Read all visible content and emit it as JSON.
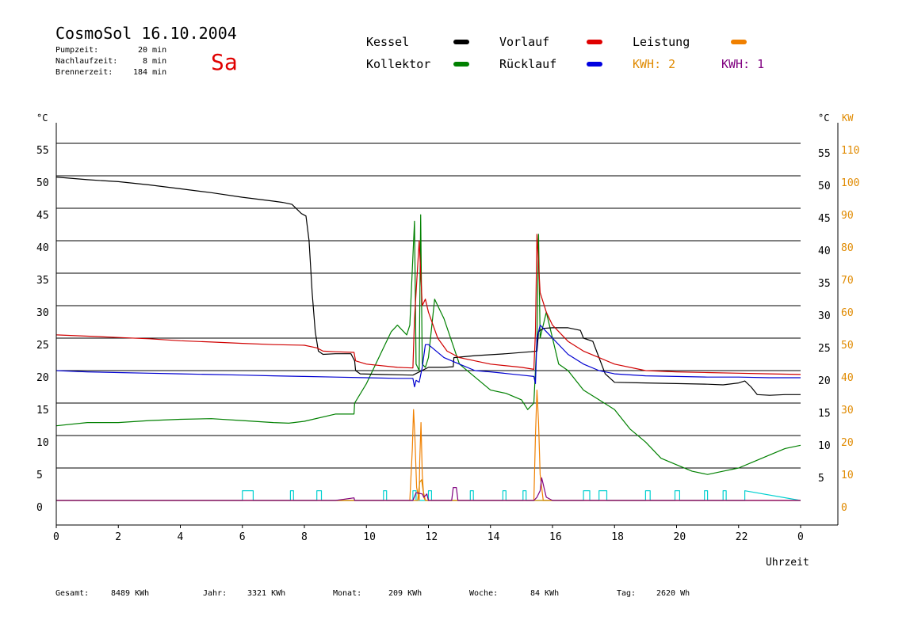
{
  "header": {
    "title": "CosmoSol 16.10.2004",
    "day": "Sa",
    "pumpzeit_label": "Pumpzeit:",
    "pumpzeit_value": "20 min",
    "nachlaufzeit_label": "Nachlaufzeit:",
    "nachlaufzeit_value": "8 min",
    "brennerzeit_label": "Brennerzeit:",
    "brennerzeit_value": "184 min"
  },
  "legend": {
    "kessel": "Kessel",
    "kollektor": "Kollektor",
    "vorlauf": "Vorlauf",
    "ruecklauf": "Rücklauf",
    "leistung": "Leistung",
    "kwh2": "KWH: 2",
    "kwh1": "KWH: 1"
  },
  "footer": {
    "gesamt_label": "Gesamt:",
    "gesamt_value": "8489 KWh",
    "jahr_label": "Jahr:",
    "jahr_value": "3321 KWh",
    "monat_label": "Monat:",
    "monat_value": "209 KWh",
    "woche_label": "Woche:",
    "woche_value": "84 KWh",
    "tag_label": "Tag:",
    "tag_value": "2620 Wh"
  },
  "chart_data": {
    "type": "line",
    "xlabel": "Uhrzeit",
    "ylabel_left": "°C",
    "ylabel_right_temp": "°C",
    "ylabel_right_power": "KW",
    "xlim": [
      0,
      24
    ],
    "ylim": [
      0,
      55
    ],
    "grid": true,
    "x_ticks": [
      "0",
      "2",
      "4",
      "6",
      "8",
      "10",
      "12",
      "14",
      "16",
      "18",
      "20",
      "22",
      "0"
    ],
    "y_ticks": [
      0,
      5,
      10,
      15,
      20,
      25,
      30,
      35,
      40,
      45,
      50,
      55
    ],
    "y_ticks_right_temp": [
      5,
      10,
      15,
      20,
      25,
      30,
      35,
      40,
      45,
      50,
      55
    ],
    "y_ticks_right_power": [
      0,
      10,
      20,
      30,
      40,
      50,
      60,
      70,
      80,
      90,
      100,
      110
    ],
    "colors": {
      "kessel": "#000000",
      "kollektor": "#008000",
      "vorlauf": "#d00000",
      "ruecklauf": "#0000d0",
      "leistung": "#f08000",
      "kwh2": "#e08a00",
      "kwh1": "#800080",
      "pump": "#00d0d0"
    },
    "series": [
      {
        "name": "Kessel",
        "key": "kessel",
        "x": [
          0,
          1,
          2,
          3,
          4,
          5,
          6,
          7,
          7.3,
          7.6,
          7.9,
          8.05,
          8.15,
          8.25,
          8.35,
          8.45,
          8.6,
          9,
          9.5,
          9.62,
          9.65,
          9.8,
          10.5,
          11.5,
          12,
          12.5,
          12.8,
          12.82,
          13.5,
          14.5,
          15.3,
          15.5,
          15.55,
          15.7,
          16,
          16.5,
          16.9,
          17,
          17.3,
          17.5,
          17.7,
          18,
          19,
          20,
          21,
          21.5,
          22,
          22.2,
          22.4,
          22.6,
          23,
          23.5,
          24
        ],
        "y": [
          49.8,
          49.4,
          49.1,
          48.6,
          48.0,
          47.4,
          46.7,
          46.1,
          45.9,
          45.6,
          44.2,
          43.8,
          40,
          32,
          26,
          23,
          22.5,
          22.6,
          22.6,
          21.5,
          20,
          19.5,
          19.4,
          19.3,
          20.5,
          20.5,
          20.6,
          22,
          22.3,
          22.6,
          22.9,
          23,
          26,
          26.5,
          26.6,
          26.6,
          26.2,
          25,
          24.5,
          22,
          19.5,
          18.2,
          18.1,
          18.0,
          17.9,
          17.8,
          18.1,
          18.4,
          17.5,
          16.3,
          16.2,
          16.3,
          16.3
        ]
      },
      {
        "name": "Kollektor",
        "key": "kollektor",
        "x": [
          0,
          1,
          2,
          3,
          4,
          5,
          6,
          7,
          7.5,
          8,
          9,
          9.6,
          9.62,
          10,
          10.5,
          10.8,
          11.0,
          11.3,
          11.4,
          11.55,
          11.6,
          11.7,
          11.75,
          11.8,
          11.9,
          12,
          12.2,
          12.3,
          12.5,
          13,
          13.5,
          14,
          14.5,
          15,
          15.2,
          15.4,
          15.5,
          15.55,
          15.6,
          15.7,
          15.8,
          16,
          16.2,
          16.5,
          17,
          17.5,
          18,
          18.5,
          19,
          19.5,
          20,
          20.5,
          21,
          21.5,
          22,
          22.5,
          23,
          23.5,
          24
        ],
        "y": [
          11.5,
          12,
          12,
          12.3,
          12.5,
          12.6,
          12.3,
          12,
          11.9,
          12.2,
          13.3,
          13.3,
          15,
          18,
          23,
          26,
          27,
          25.5,
          27,
          43,
          21,
          20,
          44,
          21,
          20.5,
          22,
          31,
          30,
          28,
          21,
          19,
          17,
          16.5,
          15.5,
          14,
          15,
          25,
          41,
          25,
          27,
          29,
          25,
          21,
          20,
          17,
          15.5,
          14,
          11,
          9,
          6.5,
          5.5,
          4.5,
          4,
          4.5,
          5,
          6,
          7,
          8,
          8.5
        ]
      },
      {
        "name": "Vorlauf",
        "key": "vorlauf",
        "x": [
          0,
          1,
          2,
          3,
          4,
          5,
          6,
          7,
          8,
          8.4,
          8.6,
          9,
          9.6,
          9.65,
          10,
          11,
          11.5,
          11.55,
          11.6,
          11.7,
          11.8,
          11.9,
          12,
          12.3,
          12.6,
          13,
          14,
          15,
          15.4,
          15.45,
          15.5,
          15.6,
          15.8,
          16,
          16.5,
          17,
          17.5,
          18,
          19,
          20,
          21,
          22,
          23,
          24
        ],
        "y": [
          25.5,
          25.3,
          25.1,
          24.9,
          24.6,
          24.4,
          24.2,
          24.0,
          23.9,
          23.5,
          23.0,
          22.9,
          22.8,
          21.5,
          21,
          20.5,
          20.4,
          28,
          32,
          40,
          30,
          31,
          29,
          25,
          23,
          22,
          21,
          20.5,
          20.2,
          26,
          41,
          32,
          29,
          27,
          24.5,
          23,
          22,
          21,
          20,
          19.8,
          19.7,
          19.6,
          19.5,
          19.4
        ]
      },
      {
        "name": "Rücklauf",
        "key": "ruecklauf",
        "x": [
          0,
          1,
          2,
          3,
          4,
          5,
          6,
          7,
          8,
          9,
          10,
          11,
          11.5,
          11.55,
          11.6,
          11.7,
          11.8,
          11.9,
          12,
          12.5,
          13,
          13.5,
          14,
          15,
          15.4,
          15.45,
          15.5,
          15.6,
          15.8,
          16,
          16.5,
          17,
          17.5,
          18,
          19,
          20,
          21,
          22,
          23,
          24
        ],
        "y": [
          20.0,
          19.8,
          19.7,
          19.6,
          19.5,
          19.4,
          19.3,
          19.2,
          19.1,
          19.0,
          18.9,
          18.8,
          18.8,
          17.5,
          18.5,
          18.2,
          20.5,
          24,
          24,
          22,
          21,
          20,
          19.8,
          19.3,
          19.1,
          18,
          25,
          27,
          26,
          25,
          22.5,
          21,
          20,
          19.5,
          19.2,
          19.1,
          19.0,
          19.0,
          18.9,
          18.9
        ]
      },
      {
        "name": "Leistung",
        "key": "leistung",
        "x": [
          0,
          11.4,
          11.48,
          11.52,
          11.56,
          11.62,
          11.7,
          11.72,
          11.76,
          11.8,
          11.85,
          11.9,
          15.4,
          15.45,
          15.5,
          15.55,
          15.6,
          15.7,
          24
        ],
        "y": [
          0,
          0,
          8,
          14,
          10,
          2,
          0,
          6,
          12,
          4,
          0.5,
          0,
          0,
          10,
          17,
          12,
          4,
          0,
          0
        ]
      },
      {
        "name": "KWH: 2",
        "key": "kwh2",
        "x": [
          0,
          11.65,
          11.72,
          11.78,
          11.83,
          11.9,
          24
        ],
        "y": [
          0,
          0,
          2.8,
          3.2,
          1.5,
          0,
          0
        ]
      },
      {
        "name": "KWH: 1",
        "key": "kwh1",
        "x": [
          0,
          9,
          9.6,
          9.62,
          11.5,
          11.6,
          11.8,
          11.85,
          11.95,
          12,
          12.75,
          12.8,
          12.9,
          12.95,
          15.4,
          15.5,
          15.6,
          15.65,
          15.7,
          15.75,
          15.8,
          16,
          24
        ],
        "y": [
          0,
          0,
          0.4,
          0,
          0,
          1.2,
          1,
          0.5,
          1,
          0,
          0,
          2,
          2,
          0,
          0,
          0.5,
          1.5,
          3.5,
          2.5,
          1.5,
          0.5,
          0,
          0
        ]
      },
      {
        "name": "Pumpe",
        "key": "pump",
        "x": [
          0,
          6.0,
          6.0,
          6.35,
          6.35,
          7.55,
          7.55,
          7.65,
          7.65,
          8.4,
          8.4,
          8.55,
          8.55,
          10.55,
          10.55,
          10.65,
          10.65,
          11.5,
          11.5,
          11.6,
          11.6,
          12.0,
          12.0,
          12.1,
          12.1,
          13.35,
          13.35,
          13.45,
          13.45,
          14.4,
          14.4,
          14.5,
          14.5,
          15.05,
          15.05,
          15.15,
          15.15,
          17.0,
          17.0,
          17.2,
          17.2,
          17.5,
          17.5,
          17.75,
          17.75,
          19.0,
          19.0,
          19.15,
          19.15,
          19.95,
          19.95,
          20.1,
          20.1,
          20.9,
          20.9,
          21.0,
          21.0,
          21.5,
          21.5,
          21.6,
          21.6,
          22.2,
          22.2,
          24
        ],
        "y": [
          0,
          0,
          1.5,
          1.5,
          0,
          0,
          1.5,
          1.5,
          0,
          0,
          1.5,
          1.5,
          0,
          0,
          1.5,
          1.5,
          0,
          0,
          1.5,
          1.5,
          0,
          0,
          1.5,
          1.5,
          0,
          0,
          1.5,
          1.5,
          0,
          0,
          1.5,
          1.5,
          0,
          0,
          1.5,
          1.5,
          0,
          0,
          1.5,
          1.5,
          0,
          0,
          1.5,
          1.5,
          0,
          0,
          1.5,
          1.5,
          0,
          0,
          1.5,
          1.5,
          0,
          0,
          1.5,
          1.5,
          0,
          0,
          1.5,
          1.5,
          0,
          0,
          1.5,
          0
        ]
      }
    ]
  }
}
